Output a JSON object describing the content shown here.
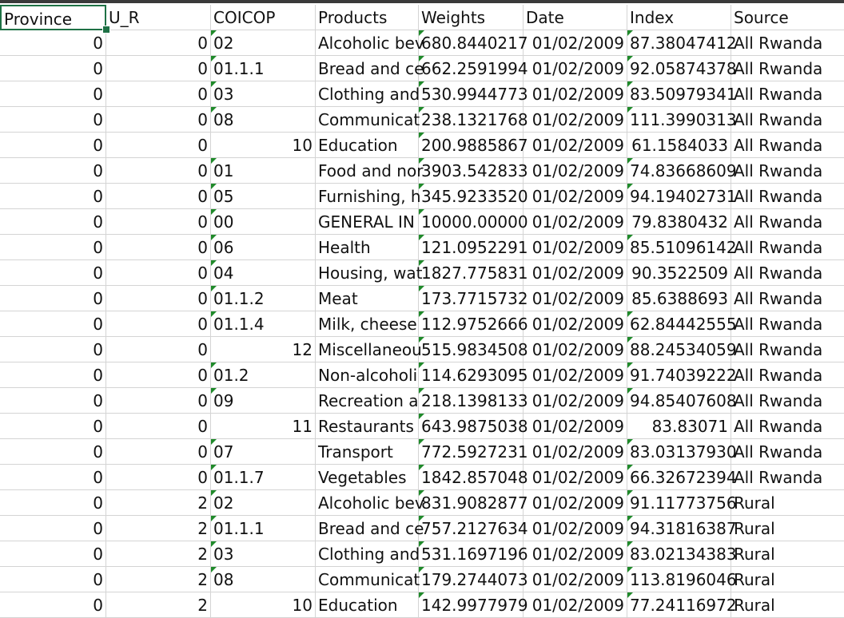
{
  "columns": [
    "Province",
    "U_R",
    "COICOP",
    "Products",
    "Weights",
    "Date",
    "Index",
    "Source"
  ],
  "rows": [
    [
      "0",
      "0",
      "02",
      "Alcoholic bev",
      "680.8440217",
      "01/02/2009",
      "87.38047412",
      "All Rwanda"
    ],
    [
      "0",
      "0",
      "01.1.1",
      "Bread and ce",
      "662.2591994",
      "01/02/2009",
      "92.05874378",
      "All Rwanda"
    ],
    [
      "0",
      "0",
      "03",
      "Clothing and",
      "530.9944773",
      "01/02/2009",
      "83.50979341",
      "All Rwanda"
    ],
    [
      "0",
      "0",
      "08",
      "Communicat",
      "238.1321768",
      "01/02/2009",
      "111.3990313",
      "All Rwanda"
    ],
    [
      "0",
      "0",
      "10",
      "Education",
      "200.9885867",
      "01/02/2009",
      "61.1584033",
      "All Rwanda"
    ],
    [
      "0",
      "0",
      "01",
      "Food and nor",
      "3903.542833",
      "01/02/2009",
      "74.83668609",
      "All Rwanda"
    ],
    [
      "0",
      "0",
      "05",
      "Furnishing, h",
      "345.9233520",
      "01/02/2009",
      "94.19402731",
      "All Rwanda"
    ],
    [
      "0",
      "0",
      "00",
      "GENERAL IN",
      "10000.00000",
      "01/02/2009",
      "79.8380432",
      "All Rwanda"
    ],
    [
      "0",
      "0",
      "06",
      "Health",
      "121.0952291",
      "01/02/2009",
      "85.51096142",
      "All Rwanda"
    ],
    [
      "0",
      "0",
      "04",
      "Housing, wat",
      "1827.775831",
      "01/02/2009",
      "90.3522509",
      "All Rwanda"
    ],
    [
      "0",
      "0",
      "01.1.2",
      "Meat",
      "173.7715732",
      "01/02/2009",
      "85.6388693",
      "All Rwanda"
    ],
    [
      "0",
      "0",
      "01.1.4",
      "Milk, cheese",
      "112.9752666",
      "01/02/2009",
      "62.84442555",
      "All Rwanda"
    ],
    [
      "0",
      "0",
      "12",
      "Miscellaneou",
      "515.9834508",
      "01/02/2009",
      "88.24534059",
      "All Rwanda"
    ],
    [
      "0",
      "0",
      "01.2",
      "Non-alcoholi",
      "114.6293095",
      "01/02/2009",
      "91.74039222",
      "All Rwanda"
    ],
    [
      "0",
      "0",
      "09",
      "Recreation a",
      "218.1398133",
      "01/02/2009",
      "94.85407608",
      "All Rwanda"
    ],
    [
      "0",
      "0",
      "11",
      "Restaurants",
      "643.9875038",
      "01/02/2009",
      "83.83071",
      "All Rwanda"
    ],
    [
      "0",
      "0",
      "07",
      "Transport",
      "772.5927231",
      "01/02/2009",
      "83.03137930",
      "All Rwanda"
    ],
    [
      "0",
      "0",
      "01.1.7",
      "Vegetables",
      "1842.857048",
      "01/02/2009",
      "66.32672394",
      "All Rwanda"
    ],
    [
      "0",
      "2",
      "02",
      "Alcoholic bev",
      "831.9082877",
      "01/02/2009",
      "91.11773756",
      "Rural"
    ],
    [
      "0",
      "2",
      "01.1.1",
      "Bread and ce",
      "757.2127634",
      "01/02/2009",
      "94.31816387",
      "Rural"
    ],
    [
      "0",
      "2",
      "03",
      "Clothing and",
      "531.1697196",
      "01/02/2009",
      "83.02134383",
      "Rural"
    ],
    [
      "0",
      "2",
      "08",
      "Communicat",
      "179.2744073",
      "01/02/2009",
      "113.8196046",
      "Rural"
    ],
    [
      "0",
      "2",
      "10",
      "Education",
      "142.9977979",
      "01/02/2009",
      "77.24116972",
      "Rural"
    ]
  ],
  "theme": {
    "accent": "#1e7145",
    "gridline": "#d4d4d4",
    "flag": "#1f8a2a"
  }
}
